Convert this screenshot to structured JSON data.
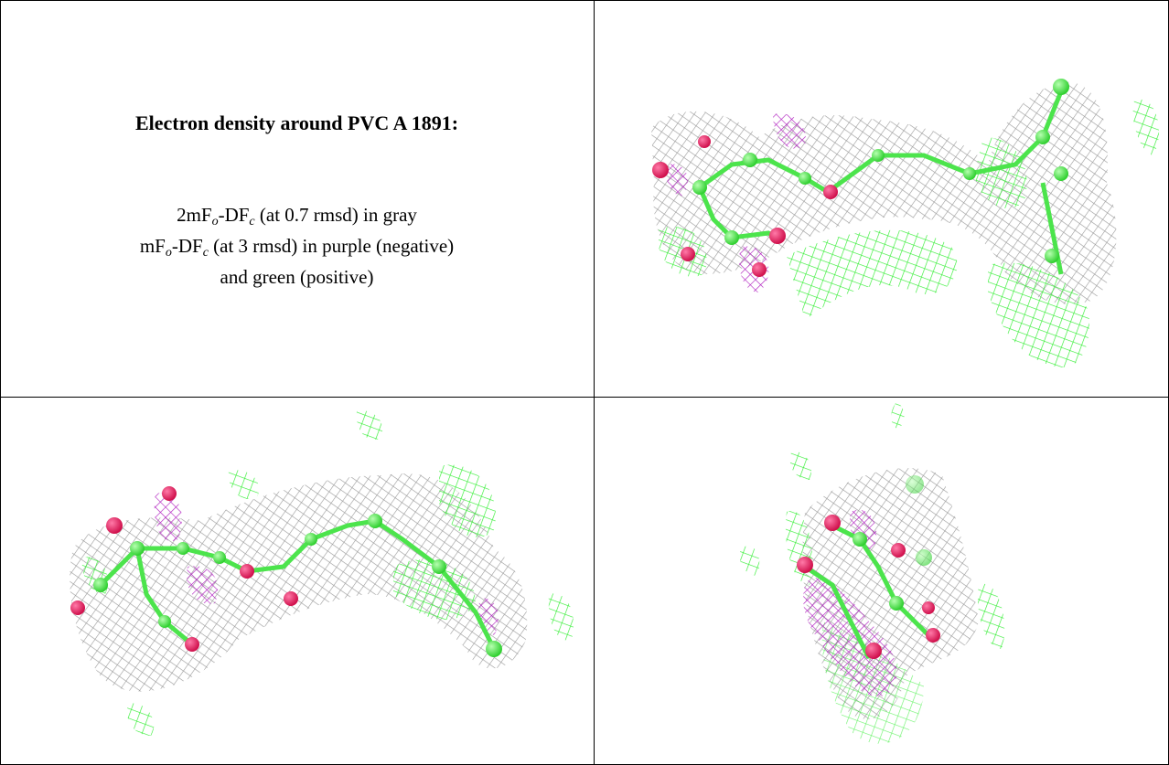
{
  "caption": {
    "title": "Electron density around PVC A 1891:",
    "legend_lines": [
      [
        "2mF",
        "o",
        "-DF",
        "c",
        " (at 0.7 rmsd) in gray"
      ],
      [
        "mF",
        "o",
        "-DF",
        "c",
        " (at 3 rmsd) in purple (negative)"
      ],
      [
        "and green (positive)"
      ]
    ]
  }
}
